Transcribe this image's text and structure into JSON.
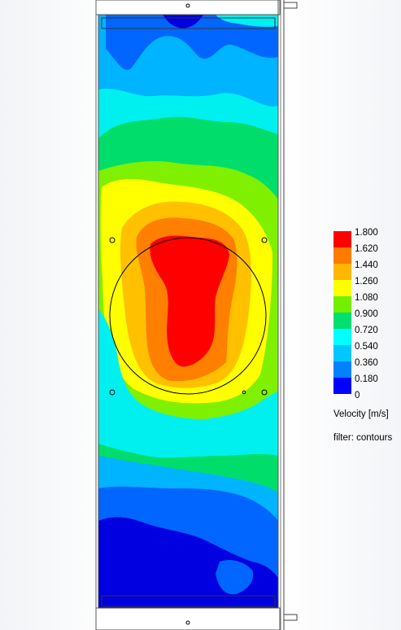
{
  "legend": {
    "title": "Velocity [m/s]",
    "filter": "filter: contours",
    "ticks": [
      "1.800",
      "1.620",
      "1.440",
      "1.260",
      "1.080",
      "0.900",
      "0.720",
      "0.540",
      "0.360",
      "0.180",
      "0"
    ],
    "colors": [
      "#ff0000",
      "#ff7b00",
      "#ffb600",
      "#ffff00",
      "#73ef00",
      "#00e070",
      "#00ffff",
      "#00c8ff",
      "#0081ff",
      "#0000ff"
    ]
  },
  "palette": {
    "dark_blue": "#0000e0",
    "blue": "#0066ff",
    "light_blue": "#00b4ff",
    "cyan": "#00f0f0",
    "green": "#00dd6a",
    "yellow_green": "#7ff000",
    "yellow": "#ffff00",
    "orange_yellow": "#ffc000",
    "orange": "#ff7f00",
    "red": "#ff0000"
  }
}
